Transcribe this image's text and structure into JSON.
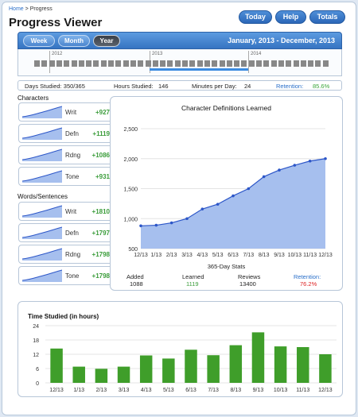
{
  "breadcrumb": {
    "home": "Home",
    "sep": ">",
    "current": "Progress"
  },
  "title": "Progress Viewer",
  "top_buttons": {
    "today": "Today",
    "help": "Help",
    "totals": "Totals"
  },
  "range": {
    "week": "Week",
    "month": "Month",
    "year": "Year",
    "selected": "Year",
    "dates": "January, 2013 - December, 2013"
  },
  "timeline_years": [
    "2012",
    "2013",
    "2014"
  ],
  "stats": {
    "days": "Days Studied: 350/365",
    "hours_label": "Hours Studied:",
    "hours": "146",
    "minutes_label": "Minutes per Day:",
    "minutes": "24",
    "retention_label": "Retention:",
    "retention": "85.6%"
  },
  "characters": {
    "label": "Characters",
    "items": [
      {
        "label": "Writ",
        "value": "+927"
      },
      {
        "label": "Defn",
        "value": "+1119"
      },
      {
        "label": "Rdng",
        "value": "+1086"
      },
      {
        "label": "Tone",
        "value": "+931"
      }
    ]
  },
  "words": {
    "label": "Words/Sentences",
    "items": [
      {
        "label": "Writ",
        "value": "+1810"
      },
      {
        "label": "Defn",
        "value": "+1797"
      },
      {
        "label": "Rdng",
        "value": "+1798"
      },
      {
        "label": "Tone",
        "value": "+1798"
      }
    ]
  },
  "def_panel": {
    "subtitle": "365-Day Stats",
    "added_label": "Added",
    "added": "1088",
    "learned_label": "Learned",
    "learned": "1119",
    "reviews_label": "Reviews",
    "reviews": "13400",
    "retention_label": "Retention:",
    "retention": "76.2%"
  },
  "time_panel": {
    "title": "Time Studied (in hours)"
  },
  "colors": {
    "accent": "#3674c2",
    "area": "#a6bfee",
    "line": "#2c56c8",
    "bar": "#3f9e2a",
    "positive": "#3a9c3a",
    "negative": "#d22"
  },
  "chart_data": [
    {
      "type": "area",
      "title": "Character Definitions Learned",
      "xlabel": "365-Day Stats",
      "categories": [
        "12/13",
        "1/13",
        "2/13",
        "3/13",
        "4/13",
        "5/13",
        "6/13",
        "7/13",
        "8/13",
        "9/13",
        "10/13",
        "11/13",
        "12/13"
      ],
      "values": [
        880,
        890,
        930,
        1000,
        1160,
        1240,
        1380,
        1500,
        1700,
        1810,
        1890,
        1960,
        2000
      ],
      "ylim": [
        500,
        2500
      ],
      "yticks": [
        "500",
        "1,000",
        "1,500",
        "2,000",
        "2,500"
      ]
    },
    {
      "type": "bar",
      "title": "Time Studied (in hours)",
      "categories": [
        "12/13",
        "1/13",
        "2/13",
        "3/13",
        "4/13",
        "5/13",
        "6/13",
        "7/13",
        "8/13",
        "9/13",
        "10/13",
        "11/13",
        "12/13"
      ],
      "values": [
        14.4,
        6.8,
        5.9,
        6.8,
        11.5,
        10.2,
        13.9,
        11.6,
        15.8,
        21.2,
        15.3,
        15.0,
        12.0
      ],
      "ylim": [
        0,
        24
      ],
      "yticks": [
        "0",
        "6",
        "12",
        "18",
        "24"
      ]
    }
  ]
}
